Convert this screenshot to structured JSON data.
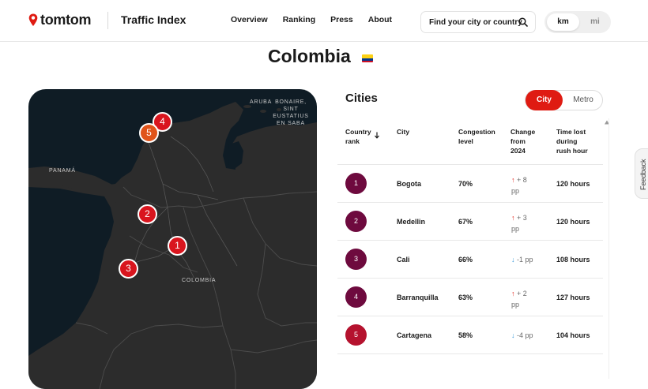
{
  "header": {
    "brand": "tomtom",
    "product": "Traffic Index",
    "nav": [
      "Overview",
      "Ranking",
      "Press",
      "About"
    ],
    "search_placeholder": "Find your city or country",
    "units": {
      "km": "km",
      "mi": "mi",
      "selected": "km"
    }
  },
  "page": {
    "country": "Colombia"
  },
  "map": {
    "labels": {
      "aruba": "ARUBA",
      "bonaire": "BONAIRE, SINT EUSTATIUS EN SABA",
      "panama": "PANAMÁ",
      "colombia": "COLOMBIA"
    },
    "markers": [
      {
        "rank": "1",
        "color": "#d9151e"
      },
      {
        "rank": "2",
        "color": "#d9151e"
      },
      {
        "rank": "3",
        "color": "#d9151e"
      },
      {
        "rank": "4",
        "color": "#d9151e"
      },
      {
        "rank": "5",
        "color": "#e0541a"
      }
    ]
  },
  "cities": {
    "title": "Cities",
    "toggle": {
      "city": "City",
      "metro": "Metro",
      "selected": "City"
    },
    "columns": {
      "rank": "Country rank",
      "city": "City",
      "congestion": "Congestion level",
      "change": "Change from 2024",
      "time_lost": "Time lost during rush hour"
    },
    "rows": [
      {
        "rank": "1",
        "city": "Bogota",
        "congestion": "70%",
        "change_arrow": "↑",
        "change": "+ 8 pp",
        "direction": "up",
        "time_lost": "120 hours",
        "badge": "#6e0a3e"
      },
      {
        "rank": "2",
        "city": "Medellin",
        "congestion": "67%",
        "change_arrow": "↑",
        "change": "+ 3 pp",
        "direction": "up",
        "time_lost": "120 hours",
        "badge": "#6e0a3e"
      },
      {
        "rank": "3",
        "city": "Cali",
        "congestion": "66%",
        "change_arrow": "↓",
        "change": "-1 pp",
        "direction": "down",
        "time_lost": "108 hours",
        "badge": "#6e0a3e"
      },
      {
        "rank": "4",
        "city": "Barranquilla",
        "congestion": "63%",
        "change_arrow": "↑",
        "change": "+ 2 pp",
        "direction": "up",
        "time_lost": "127 hours",
        "badge": "#6e0a3e"
      },
      {
        "rank": "5",
        "city": "Cartagena",
        "congestion": "58%",
        "change_arrow": "↓",
        "change": "-4 pp",
        "direction": "down",
        "time_lost": "104 hours",
        "badge": "#b5122e"
      }
    ]
  },
  "feedback": "Feedback"
}
